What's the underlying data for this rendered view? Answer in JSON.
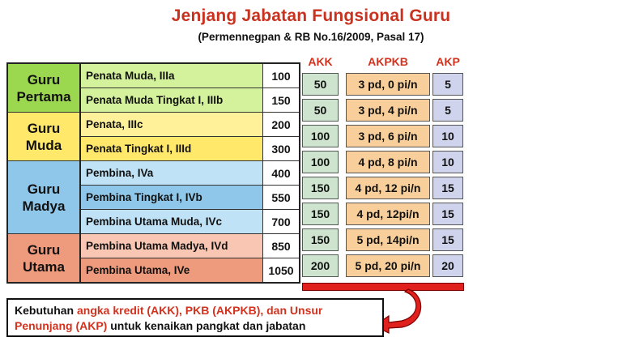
{
  "title": "Jenjang Jabatan Fungsional Guru",
  "subtitle": "(Permennegpan & RB No.16/2009, Pasal 17)",
  "groups": [
    {
      "line1": "Guru",
      "line2": "Pertama"
    },
    {
      "line1": "Guru",
      "line2": "Muda"
    },
    {
      "line1": "Guru",
      "line2": "Madya"
    },
    {
      "line1": "Guru",
      "line2": "Utama"
    }
  ],
  "ranks": [
    {
      "name": "Penata Muda, IIIa",
      "points": "100"
    },
    {
      "name": "Penata Muda Tingkat I, IIIb",
      "points": "150"
    },
    {
      "name": "Penata, IIIc",
      "points": "200"
    },
    {
      "name": "Penata Tingkat I, IIId",
      "points": "300"
    },
    {
      "name": "Pembina, IVa",
      "points": "400"
    },
    {
      "name": "Pembina Tingkat I, IVb",
      "points": "550"
    },
    {
      "name": "Pembina Utama Muda, IVc",
      "points": "700"
    },
    {
      "name": "Pembina Utama Madya, IVd",
      "points": "850"
    },
    {
      "name": "Pembina Utama, IVe",
      "points": "1050"
    }
  ],
  "headers": {
    "akk": "AKK",
    "akpkb": "AKPKB",
    "akp": "AKP"
  },
  "akk": [
    "50",
    "50",
    "100",
    "100",
    "150",
    "150",
    "150",
    "200"
  ],
  "akpkb": [
    "3 pd, 0 pi/n",
    "3 pd, 4 pi/n",
    "3 pd, 6 pi/n",
    "4 pd, 8 pi/n",
    "4 pd, 12 pi/n",
    "4 pd, 12pi/n",
    "5 pd, 14pi/n",
    "5 pd, 20 pi/n"
  ],
  "akp": [
    "5",
    "5",
    "10",
    "10",
    "15",
    "15",
    "15",
    "20"
  ],
  "note": {
    "part1": "Kebutuhan ",
    "part2": "angka kredit (AKK), PKB (AKPKB), dan Unsur Penunjang (AKP)",
    "part3": " untuk kenaikan pangkat dan jabatan"
  },
  "colors": {
    "accent_red": "#d2321e",
    "pertama": "#9bd84f",
    "muda": "#ffe86a",
    "madya": "#8fc7ea",
    "utama": "#ee9a7c"
  }
}
